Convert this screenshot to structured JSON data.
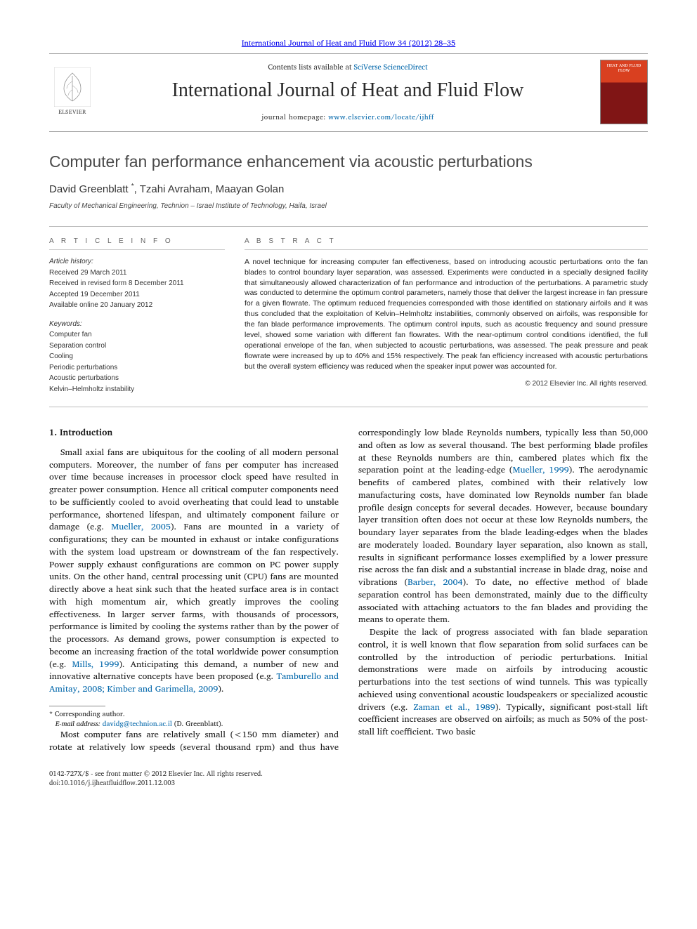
{
  "header": {
    "citation": "International Journal of Heat and Fluid Flow 34 (2012) 28–35",
    "contents_prefix": "Contents lists available at ",
    "contents_link": "SciVerse ScienceDirect",
    "journal_name": "International Journal of Heat and Fluid Flow",
    "homepage_prefix": "journal homepage: ",
    "homepage_url": "www.elsevier.com/locate/ijhff",
    "publisher": "ELSEVIER",
    "cover_caption": "HEAT AND FLUID FLOW"
  },
  "article": {
    "title": "Computer fan performance enhancement via acoustic perturbations",
    "authors_html": "David Greenblatt <sup>*</sup>, Tzahi Avraham, Maayan Golan",
    "affiliation": "Faculty of Mechanical Engineering, Technion – Israel Institute of Technology, Haifa, Israel"
  },
  "info": {
    "heading": "A R T I C L E   I N F O",
    "history_label": "Article history:",
    "received": "Received 29 March 2011",
    "revised": "Received in revised form 8 December 2011",
    "accepted": "Accepted 19 December 2011",
    "online": "Available online 20 January 2012",
    "keywords_label": "Keywords:",
    "keywords": [
      "Computer fan",
      "Separation control",
      "Cooling",
      "Periodic perturbations",
      "Acoustic perturbations",
      "Kelvin–Helmholtz instability"
    ]
  },
  "abstract": {
    "heading": "A B S T R A C T",
    "text": "A novel technique for increasing computer fan effectiveness, based on introducing acoustic perturbations onto the fan blades to control boundary layer separation, was assessed. Experiments were conducted in a specially designed facility that simultaneously allowed characterization of fan performance and introduction of the perturbations. A parametric study was conducted to determine the optimum control parameters, namely those that deliver the largest increase in fan pressure for a given flowrate. The optimum reduced frequencies corresponded with those identified on stationary airfoils and it was thus concluded that the exploitation of Kelvin–Helmholtz instabilities, commonly observed on airfoils, was responsible for the fan blade performance improvements. The optimum control inputs, such as acoustic frequency and sound pressure level, showed some variation with different fan flowrates. With the near-optimum control conditions identified, the full operational envelope of the fan, when subjected to acoustic perturbations, was assessed. The peak pressure and peak flowrate were increased by up to 40% and 15% respectively. The peak fan efficiency increased with acoustic perturbations but the overall system efficiency was reduced when the speaker input power was accounted for.",
    "copyright": "© 2012 Elsevier Inc. All rights reserved."
  },
  "body": {
    "section1_heading": "1. Introduction",
    "p1": "Small axial fans are ubiquitous for the cooling of all modern personal computers. Moreover, the number of fans per computer has increased over time because increases in processor clock speed have resulted in greater power consumption. Hence all critical computer components need to be sufficiently cooled to avoid overheating that could lead to unstable performance, shortened lifespan, and ultimately component failure or damage (e.g. ",
    "p1_ref1": "Mueller, 2005",
    "p1b": "). Fans are mounted in a variety of configurations; they can be mounted in exhaust or intake configurations with the system load upstream or downstream of the fan respectively. Power supply exhaust configurations are common on PC power supply units. On the other hand, central processing unit (CPU) fans are mounted directly above a heat sink such that the heated surface area is in contact with high momentum air, which greatly improves the cooling effectiveness. In larger server farms, with thousands of processors, performance is limited by cooling the systems rather than by the power of the processors. As demand grows, power consumption is expected to become an increasing fraction of the total worldwide power consumption (e.g. ",
    "p1_ref2": "Mills, 1999",
    "p1c": "). Anticipating this demand, a number of new and innovative alternative concepts have been proposed (e.g. ",
    "p1_ref3": "Tamburello and Amitay, 2008; Kimber and Garimella, 2009",
    "p1d": ").",
    "p2": "Most computer fans are relatively small (<150 mm diameter) and rotate at relatively low speeds (several thousand rpm) and thus have correspondingly low blade Reynolds numbers, typically less than 50,000 and often as low as several thousand. The best performing blade profiles at these Reynolds numbers are thin, cambered plates which fix the separation point at the leading-edge (",
    "p2_ref1": "Mueller, 1999",
    "p2b": "). The aerodynamic benefits of cambered plates, combined with their relatively low manufacturing costs, have dominated low Reynolds number fan blade profile design concepts for several decades. However, because boundary layer transition often does not occur at these low Reynolds numbers, the boundary layer separates from the blade leading-edges when the blades are moderately loaded. Boundary layer separation, also known as stall, results in significant performance losses exemplified by a lower pressure rise across the fan disk and a substantial increase in blade drag, noise and vibrations (",
    "p2_ref2": "Barber, 2004",
    "p2c": "). To date, no effective method of blade separation control has been demonstrated, mainly due to the difficulty associated with attaching actuators to the fan blades and providing the means to operate them.",
    "p3": "Despite the lack of progress associated with fan blade separation control, it is well known that flow separation from solid surfaces can be controlled by the introduction of periodic perturbations. Initial demonstrations were made on airfoils by introducing acoustic perturbations into the test sections of wind tunnels. This was typically achieved using conventional acoustic loudspeakers or specialized acoustic drivers (e.g. ",
    "p3_ref1": "Zaman et al., 1989",
    "p3b": "). Typically, significant post-stall lift coefficient increases are observed on airfoils; as much as 50% of the post-stall lift coefficient. Two basic"
  },
  "footnote": {
    "corr": "* Corresponding author.",
    "email_label": "E-mail address: ",
    "email": "davidg@technion.ac.il",
    "email_author": " (D. Greenblatt)."
  },
  "footer": {
    "issn_line": "0142-727X/$ - see front matter © 2012 Elsevier Inc. All rights reserved.",
    "doi": "doi:10.1016/j.ijheatfluidflow.2011.12.003"
  },
  "colors": {
    "link": "#0066aa",
    "text": "#1a1a1a",
    "rule": "#999999",
    "cover_top": "#d94020",
    "cover_bottom": "#801515"
  }
}
